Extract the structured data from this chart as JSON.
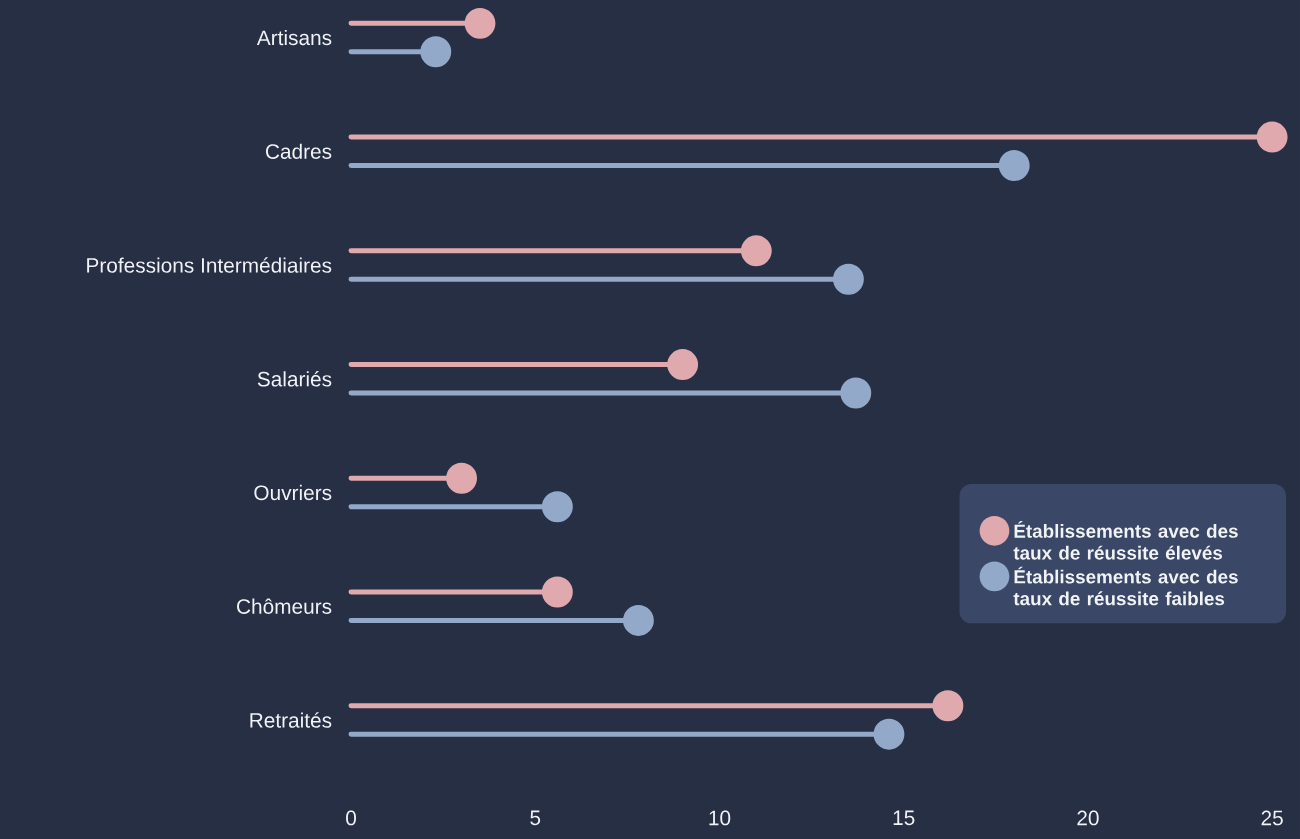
{
  "chart_data": {
    "type": "lollipop",
    "orientation": "horizontal",
    "categories": [
      "Artisans",
      "Cadres",
      "Professions Intermédiaires",
      "Salariés",
      "Ouvriers",
      "Chômeurs",
      "Retraités"
    ],
    "series": [
      {
        "name": "Établissements avec des taux de réussite élevés",
        "color": "#e0a9ae",
        "values": [
          3.5,
          25,
          11,
          9,
          3,
          5.6,
          16.2
        ]
      },
      {
        "name": "Établissements avec des taux de réussite faibles",
        "color": "#93a9c9",
        "values": [
          2.3,
          18,
          13.5,
          13.7,
          5.6,
          7.8,
          14.6
        ]
      }
    ],
    "xlim": [
      0,
      25
    ],
    "xticks": [
      0,
      5,
      10,
      15,
      20,
      25
    ],
    "legend": "right",
    "marker": "circle",
    "grid": false
  }
}
